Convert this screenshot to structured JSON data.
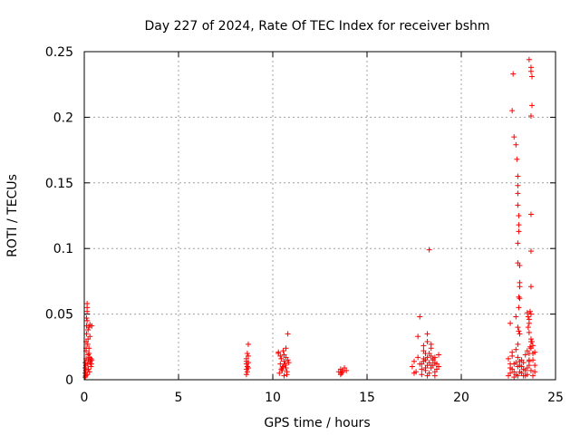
{
  "chart_data": {
    "type": "scatter",
    "title": "Day 227 of 2024, Rate Of TEC Index for receiver bshm",
    "xlabel": "GPS time / hours",
    "ylabel": "ROTI / TECUs",
    "xlim": [
      0,
      25
    ],
    "ylim": [
      0,
      0.25
    ],
    "xticks": [
      0,
      5,
      10,
      15,
      20,
      25
    ],
    "yticks": [
      0,
      0.05,
      0.1,
      0.15,
      0.2,
      0.25
    ],
    "xtick_labels": [
      "0",
      "5",
      "10",
      "15",
      "20",
      "25"
    ],
    "ytick_labels": [
      "0",
      "0.05",
      "0.1",
      "0.15",
      "0.2",
      "0.25"
    ],
    "grid": true,
    "marker": "+",
    "color": "#ff0000",
    "series": [
      {
        "x": [
          0.05,
          0.05,
          0.05,
          0.05,
          0.08,
          0.08,
          0.08,
          0.1,
          0.1,
          0.1,
          0.12,
          0.12,
          0.12,
          0.15,
          0.15,
          0.15,
          0.15,
          0.18,
          0.18,
          0.2,
          0.2,
          0.22,
          0.22,
          0.25,
          0.25,
          0.28,
          0.28,
          0.3,
          0.3,
          0.32,
          0.35,
          0.35,
          0.38,
          0.4,
          0.4,
          0.1,
          0.2,
          0.3,
          0.15,
          0.25,
          8.6,
          8.6,
          8.6,
          8.6,
          8.65,
          8.65,
          8.65,
          8.7,
          8.7,
          8.7,
          8.6,
          8.7,
          10.3,
          10.35,
          10.4,
          10.45,
          10.5,
          10.55,
          10.6,
          10.6,
          10.65,
          10.7,
          10.75,
          10.8,
          10.85,
          10.3,
          10.45,
          10.6,
          10.7,
          10.8,
          10.5,
          10.65,
          10.75,
          10.4,
          10.55,
          10.7,
          13.5,
          13.6,
          13.65,
          13.7,
          13.8,
          13.9,
          13.6,
          13.7,
          17.4,
          17.5,
          17.6,
          17.7,
          17.8,
          17.9,
          18.0,
          18.1,
          18.2,
          18.3,
          18.4,
          18.5,
          18.6,
          18.7,
          18.8,
          17.9,
          18.0,
          18.1,
          18.2,
          18.3,
          18.4,
          18.5,
          18.6,
          18.0,
          18.2,
          18.4,
          18.6,
          17.9,
          18.1,
          18.3,
          18.5,
          18.7,
          18.0,
          18.2,
          18.4,
          18.6,
          17.8,
          18.2,
          18.4,
          18.3,
          18.1,
          17.5,
          17.7,
          18.8,
          22.5,
          22.6,
          22.7,
          22.8,
          22.9,
          23.0,
          23.1,
          23.2,
          23.3,
          23.4,
          23.5,
          23.6,
          23.7,
          23.8,
          23.9,
          22.5,
          22.6,
          22.7,
          22.8,
          22.9,
          23.0,
          23.1,
          23.2,
          23.3,
          23.4,
          23.5,
          23.6,
          23.7,
          23.8,
          23.9,
          22.6,
          22.8,
          23.0,
          23.2,
          23.4,
          23.6,
          23.8,
          22.7,
          22.9,
          23.1,
          23.3,
          23.5,
          23.7,
          23.9,
          22.6,
          22.7,
          22.75,
          22.8,
          22.9,
          22.95,
          23.0,
          23.0,
          23.0,
          23.0,
          23.05,
          23.05,
          23.05,
          23.0,
          23.0,
          23.1,
          23.1,
          23.1,
          23.1,
          23.05,
          23.05,
          22.9,
          23.0,
          23.1,
          23.0,
          23.05,
          23.5,
          23.55,
          23.6,
          23.6,
          23.65,
          23.7,
          23.7,
          23.7,
          23.7,
          23.75,
          23.75,
          23.7,
          23.7,
          23.6,
          23.55,
          23.6,
          23.7,
          23.75,
          23.65,
          23.6,
          23.8,
          23.7
        ],
        "y": [
          0.002,
          0.005,
          0.009,
          0.013,
          0.003,
          0.007,
          0.011,
          0.016,
          0.022,
          0.029,
          0.035,
          0.041,
          0.047,
          0.052,
          0.055,
          0.058,
          0.004,
          0.012,
          0.027,
          0.019,
          0.038,
          0.008,
          0.015,
          0.024,
          0.04,
          0.006,
          0.017,
          0.033,
          0.042,
          0.014,
          0.01,
          0.016,
          0.012,
          0.015,
          0.041,
          0.024,
          0.031,
          0.013,
          0.045,
          0.02,
          0.004,
          0.008,
          0.012,
          0.016,
          0.006,
          0.01,
          0.02,
          0.013,
          0.018,
          0.027,
          0.014,
          0.009,
          0.021,
          0.005,
          0.012,
          0.016,
          0.009,
          0.022,
          0.014,
          0.003,
          0.011,
          0.017,
          0.006,
          0.015,
          0.013,
          0.02,
          0.008,
          0.019,
          0.024,
          0.035,
          0.007,
          0.012,
          0.004,
          0.018,
          0.01,
          0.009,
          0.006,
          0.008,
          0.005,
          0.007,
          0.009,
          0.007,
          0.004,
          0.006,
          0.01,
          0.014,
          0.006,
          0.033,
          0.012,
          0.008,
          0.016,
          0.02,
          0.011,
          0.013,
          0.009,
          0.015,
          0.017,
          0.012,
          0.01,
          0.004,
          0.022,
          0.007,
          0.029,
          0.005,
          0.018,
          0.011,
          0.006,
          0.014,
          0.017,
          0.024,
          0.003,
          0.012,
          0.009,
          0.02,
          0.016,
          0.008,
          0.026,
          0.003,
          0.011,
          0.013,
          0.048,
          0.035,
          0.027,
          0.099,
          0.015,
          0.005,
          0.017,
          0.019,
          0.003,
          0.005,
          0.008,
          0.012,
          0.004,
          0.017,
          0.006,
          0.01,
          0.013,
          0.003,
          0.009,
          0.02,
          0.007,
          0.015,
          0.011,
          0.016,
          0.009,
          0.021,
          0.006,
          0.013,
          0.003,
          0.011,
          0.005,
          0.008,
          0.019,
          0.004,
          0.014,
          0.024,
          0.003,
          0.006,
          0.012,
          0.002,
          0.01,
          0.015,
          0.007,
          0.011,
          0.026,
          0.018,
          0.023,
          0.014,
          0.003,
          0.022,
          0.029,
          0.021,
          0.043,
          0.205,
          0.233,
          0.185,
          0.179,
          0.168,
          0.155,
          0.148,
          0.142,
          0.133,
          0.125,
          0.118,
          0.113,
          0.104,
          0.089,
          0.087,
          0.074,
          0.071,
          0.062,
          0.055,
          0.037,
          0.048,
          0.04,
          0.035,
          0.027,
          0.063,
          0.051,
          0.048,
          0.046,
          0.043,
          0.052,
          0.071,
          0.098,
          0.126,
          0.201,
          0.209,
          0.231,
          0.235,
          0.238,
          0.244,
          0.04,
          0.036,
          0.031,
          0.029,
          0.025,
          0.015,
          0.02,
          0.05
        ]
      }
    ]
  }
}
